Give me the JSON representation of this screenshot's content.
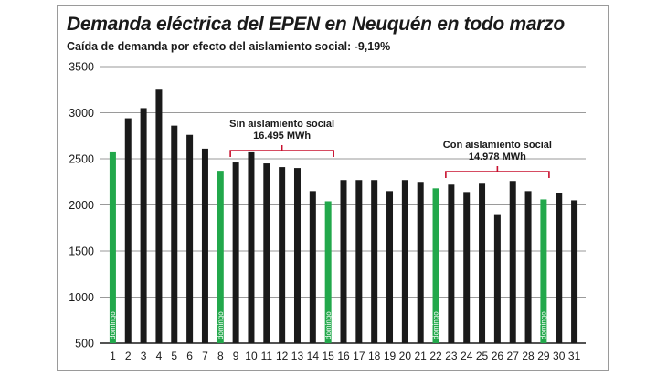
{
  "chart_data": {
    "type": "bar",
    "title": "Demanda eléctrica del EPEN en Neuquén en todo marzo",
    "subtitle": "Caída de demanda por efecto del aislamiento social: -9,19%",
    "xlabel": "",
    "ylabel": "",
    "ylim": [
      500,
      3500
    ],
    "yticks": [
      "3500",
      "3000",
      "2500",
      "2000",
      "1500",
      "1000",
      "500"
    ],
    "grid": true,
    "categories": [
      "1",
      "2",
      "3",
      "4",
      "5",
      "6",
      "7",
      "8",
      "9",
      "10",
      "11",
      "12",
      "13",
      "14",
      "15",
      "16",
      "17",
      "18",
      "19",
      "20",
      "21",
      "22",
      "23",
      "24",
      "25",
      "26",
      "27",
      "28",
      "29",
      "30",
      "31"
    ],
    "values": [
      2570,
      2940,
      3050,
      3250,
      2860,
      2760,
      2610,
      2370,
      2460,
      2570,
      2450,
      2410,
      2400,
      2150,
      2040,
      2270,
      2270,
      2270,
      2150,
      2270,
      2250,
      2180,
      2220,
      2140,
      2230,
      1890,
      2260,
      2150,
      2060,
      2130,
      2050
    ],
    "highlight_days": [
      "1",
      "8",
      "15",
      "22",
      "29"
    ],
    "highlight_label": "domingo",
    "colors": {
      "normal": "#1a1a1a",
      "highlight": "#22a84b",
      "bracket": "#c8102e",
      "grid": "#9a9a9a",
      "text": "#1a1a1a"
    },
    "annotations": [
      {
        "label": "Sin aislamiento social",
        "value": "16.495 MWh",
        "from_day": "9",
        "to_day": "15"
      },
      {
        "label": "Con aislamiento social",
        "value": "14.978 MWh",
        "from_day": "23",
        "to_day": "29"
      }
    ]
  }
}
